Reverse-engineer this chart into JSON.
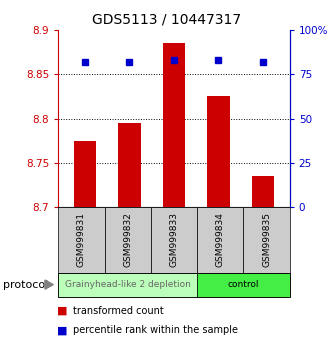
{
  "title": "GDS5113 / 10447317",
  "samples": [
    "GSM999831",
    "GSM999832",
    "GSM999833",
    "GSM999834",
    "GSM999835"
  ],
  "red_values": [
    8.775,
    8.795,
    8.885,
    8.825,
    8.735
  ],
  "blue_values": [
    82,
    82,
    83,
    83,
    82
  ],
  "baseline": 8.7,
  "ylim_left": [
    8.7,
    8.9
  ],
  "ylim_right": [
    0,
    100
  ],
  "yticks_left": [
    8.7,
    8.75,
    8.8,
    8.85,
    8.9
  ],
  "ytick_labels_left": [
    "8.7",
    "8.75",
    "8.8",
    "8.85",
    "8.9"
  ],
  "yticks_right": [
    0,
    25,
    50,
    75,
    100
  ],
  "ytick_labels_right": [
    "0",
    "25",
    "50",
    "75",
    "100%"
  ],
  "bar_color": "#cc0000",
  "dot_color": "#0000cc",
  "groups": [
    {
      "label": "Grainyhead-like 2 depletion",
      "indices": [
        0,
        1,
        2
      ],
      "color": "#bbffbb",
      "text_color": "#666666"
    },
    {
      "label": "control",
      "indices": [
        3,
        4
      ],
      "color": "#44ee44",
      "text_color": "#000000"
    }
  ],
  "protocol_label": "protocol",
  "legend_red": "transformed count",
  "legend_blue": "percentile rank within the sample",
  "bar_width": 0.5,
  "tick_area_color": "#cccccc",
  "figsize": [
    3.33,
    3.54
  ],
  "dpi": 100
}
